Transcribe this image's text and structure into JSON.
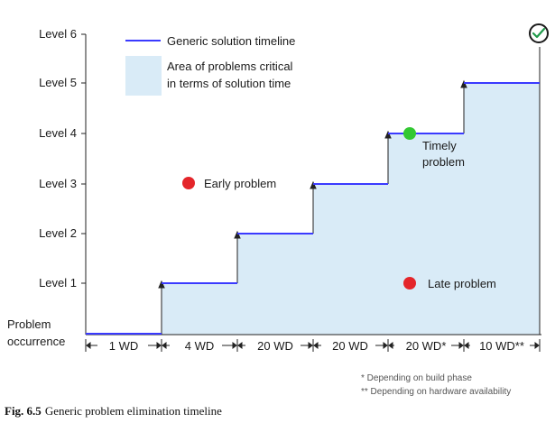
{
  "levels": [
    "Level 6",
    "Level 5",
    "Level 4",
    "Level 3",
    "Level 2",
    "Level 1"
  ],
  "origin_label_line1": "Problem",
  "origin_label_line2": "occurrence",
  "legend": {
    "timeline_label": "Generic solution timeline",
    "area_label_line1": "Area of problems critical",
    "area_label_line2": "in terms of solution time"
  },
  "points": {
    "early": "Early problem",
    "timely_line1": "Timely",
    "timely_line2": "problem",
    "late": "Late problem"
  },
  "durations": [
    "1 WD",
    "4 WD",
    "20 WD",
    "20 WD",
    "20 WD*",
    "10 WD**"
  ],
  "footnotes": {
    "note1": "*  Depending on build phase",
    "note2": "** Depending on hardware availability"
  },
  "caption": {
    "fig": "Fig. 6.5",
    "text": "Generic problem elimination timeline"
  },
  "colors": {
    "timeline": "#3a3aff",
    "area": "#d9ebf7",
    "early_dot": "#e4252a",
    "late_dot": "#e4252a",
    "timely_dot": "#32c832",
    "check": "#1f9a4a"
  },
  "icons": {
    "goal": "check-circle-icon"
  }
}
